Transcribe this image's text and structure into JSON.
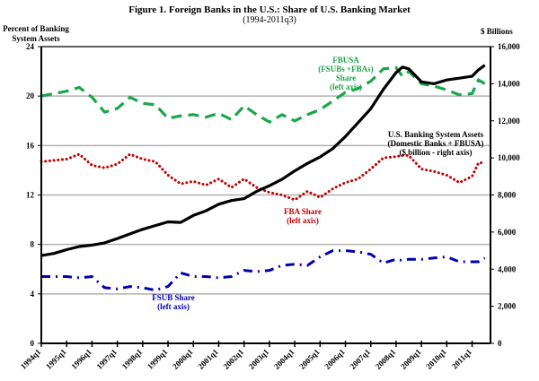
{
  "title": "Figure 1. Foreign Banks in the U.S.: Share of U.S. Banking Market",
  "subtitle": "(1994-2011q3)",
  "chart_data": {
    "type": "line",
    "title": "Figure 1. Foreign Banks in the U.S.: Share of U.S. Banking Market",
    "subtitle": "(1994-2011q3)",
    "ylabel_left": "Percent of Banking System Assets",
    "ylabel_right": "$ Billions",
    "ylim_left": [
      0,
      24
    ],
    "ylim_right": [
      0,
      16000
    ],
    "yticks_left": [
      "0",
      "4",
      "8",
      "12",
      "16",
      "20",
      "24"
    ],
    "yticks_right": [
      "0",
      "2,000",
      "4,000",
      "6,000",
      "8,000",
      "10,000",
      "12,000",
      "14,000",
      "16,000"
    ],
    "xtick_labels": [
      "1994q1",
      "1995q1",
      "1996q1",
      "1997q1",
      "1998q1",
      "1999q1",
      "2000q1",
      "2001q1",
      "2002q1",
      "2003q1",
      "2004q1",
      "2005q1",
      "2006q1",
      "2007q1",
      "2008q1",
      "2009q1",
      "2010q1",
      "2011q1"
    ],
    "x_range": [
      "1994q1",
      "2011q3"
    ],
    "grid": "horizontal",
    "x_years": [
      1994.0,
      1994.5,
      1995.0,
      1995.5,
      1996.0,
      1996.5,
      1997.0,
      1997.5,
      1998.0,
      1998.5,
      1999.0,
      1999.5,
      2000.0,
      2000.5,
      2001.0,
      2001.5,
      2002.0,
      2002.5,
      2003.0,
      2003.5,
      2004.0,
      2004.5,
      2005.0,
      2005.5,
      2006.0,
      2006.5,
      2007.0,
      2007.5,
      2008.0,
      2008.25,
      2008.5,
      2009.0,
      2009.5,
      2010.0,
      2010.5,
      2011.0,
      2011.25,
      2011.5
    ],
    "series": [
      {
        "name": "FBUSA (FSUBs +FBAs) Share (left axis)",
        "axis": "left",
        "color": "#1aa64a",
        "style": "dashed",
        "values": [
          20.0,
          20.2,
          20.4,
          20.7,
          19.9,
          18.7,
          19.0,
          19.9,
          19.4,
          19.3,
          18.2,
          18.4,
          18.5,
          18.3,
          18.6,
          18.1,
          19.2,
          18.5,
          17.9,
          18.5,
          18.0,
          18.5,
          18.9,
          19.6,
          20.3,
          20.6,
          21.2,
          22.2,
          22.3,
          21.6,
          22.0,
          21.0,
          20.8,
          20.5,
          20.1,
          20.2,
          21.3,
          21.0
        ]
      },
      {
        "name": "FBA Share (left axis)",
        "axis": "left",
        "color": "#c00000",
        "style": "dotted",
        "values": [
          14.7,
          14.8,
          14.9,
          15.3,
          14.4,
          14.2,
          14.5,
          15.3,
          14.9,
          14.7,
          13.6,
          12.9,
          13.1,
          12.8,
          13.3,
          12.6,
          13.3,
          12.6,
          12.2,
          12.0,
          11.6,
          12.3,
          11.8,
          12.5,
          13.0,
          13.3,
          14.1,
          15.0,
          15.1,
          15.2,
          15.2,
          14.1,
          13.9,
          13.6,
          13.0,
          13.5,
          14.6,
          14.6
        ]
      },
      {
        "name": "FSUB Share (left axis)",
        "axis": "left",
        "color": "#0000b0",
        "style": "dashdot",
        "values": [
          5.4,
          5.4,
          5.4,
          5.3,
          5.4,
          4.5,
          4.4,
          4.6,
          4.5,
          4.3,
          4.6,
          5.7,
          5.4,
          5.4,
          5.3,
          5.4,
          5.9,
          5.8,
          5.9,
          6.3,
          6.4,
          6.3,
          7.0,
          7.5,
          7.5,
          7.4,
          7.2,
          6.5,
          6.8,
          6.7,
          6.8,
          6.8,
          6.9,
          7.0,
          6.6,
          6.6,
          6.6,
          6.9
        ]
      },
      {
        "name": "U.S. Banking System Assets (Domestic Banks + FBUSA) ($ billion - right axis)",
        "axis": "right",
        "color": "#000000",
        "style": "solid",
        "values": [
          4730,
          4850,
          5050,
          5220,
          5300,
          5420,
          5650,
          5900,
          6150,
          6350,
          6550,
          6520,
          6900,
          7150,
          7500,
          7700,
          7800,
          8200,
          8500,
          8850,
          9300,
          9700,
          10050,
          10500,
          11150,
          11900,
          12650,
          13700,
          14600,
          14900,
          14800,
          14100,
          14000,
          14200,
          14300,
          14400,
          14750,
          15000
        ]
      }
    ],
    "annotations": [
      {
        "text": [
          "FBUSA",
          "(FSUBs +FBAs)",
          "Share",
          "(left axis)"
        ],
        "color": "#1aa64a"
      },
      {
        "text": [
          "U.S. Banking System Assets",
          "(Domestic Banks + FBUSA)",
          "($ billion - right axis)"
        ],
        "color": "#000000"
      },
      {
        "text": [
          "FBA Share",
          "(left axis)"
        ],
        "color": "#c00000"
      },
      {
        "text": [
          "FSUB Share",
          "(left axis)"
        ],
        "color": "#0000b0"
      }
    ]
  }
}
